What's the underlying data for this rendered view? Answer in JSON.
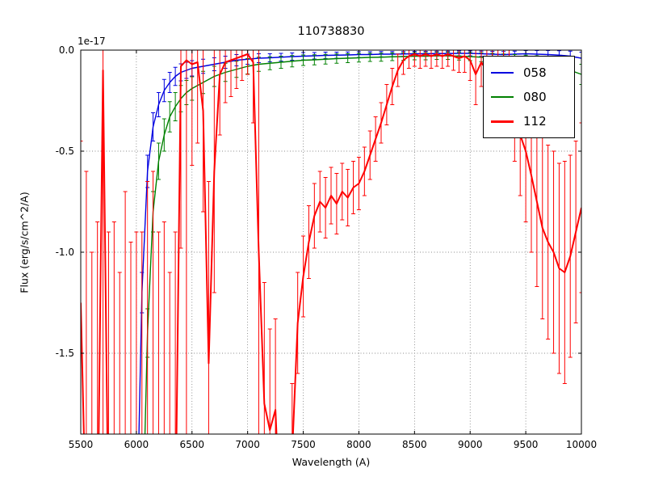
{
  "figure": {
    "background": "#ffffff"
  },
  "chart_data": {
    "type": "line",
    "title": "110738830",
    "xlabel": "Wavelength (A)",
    "ylabel": "Flux (erg/s/cm^2/A)",
    "offset_text": "1e-17",
    "xlim": [
      5500,
      10000
    ],
    "ylim": [
      -1.9,
      0.0
    ],
    "xticks": [
      5500,
      6000,
      6500,
      7000,
      7500,
      8000,
      8500,
      9000,
      9500,
      10000
    ],
    "xtick_labels": [
      "5500",
      "6000",
      "6500",
      "7000",
      "7500",
      "8000",
      "8500",
      "9000",
      "9500",
      "10000"
    ],
    "yticks": [
      0.0,
      -0.5,
      -1.0,
      -1.5
    ],
    "ytick_labels": [
      "0.0",
      "-0.5",
      "-1.0",
      "-1.5"
    ],
    "grid": true,
    "grid_style": "dotted",
    "legend": {
      "position": "upper right"
    },
    "series": [
      {
        "name": "058",
        "color": "#0000e0",
        "lw": 1.4,
        "x": [
          6000,
          6050,
          6100,
          6150,
          6200,
          6250,
          6300,
          6350,
          6400,
          6450,
          6500,
          6600,
          6700,
          6800,
          6900,
          7000,
          7100,
          7200,
          7300,
          7400,
          7500,
          7600,
          7700,
          7800,
          7900,
          8000,
          8100,
          8200,
          8300,
          8400,
          8500,
          8600,
          8700,
          8800,
          8900,
          9000,
          9100,
          9200,
          9300,
          9400,
          9500,
          9600,
          9700,
          9800,
          9900,
          10000
        ],
        "y": [
          -2.5,
          -1.2,
          -0.6,
          -0.38,
          -0.27,
          -0.2,
          -0.16,
          -0.13,
          -0.11,
          -0.1,
          -0.09,
          -0.08,
          -0.07,
          -0.06,
          -0.05,
          -0.045,
          -0.04,
          -0.038,
          -0.035,
          -0.032,
          -0.03,
          -0.028,
          -0.026,
          -0.025,
          -0.024,
          -0.022,
          -0.022,
          -0.02,
          -0.02,
          -0.019,
          -0.018,
          -0.018,
          -0.017,
          -0.017,
          -0.016,
          -0.016,
          -0.018,
          -0.02,
          -0.022,
          -0.02,
          -0.018,
          -0.02,
          -0.022,
          -0.025,
          -0.03,
          -0.04
        ],
        "err": [
          0.12,
          0.1,
          0.08,
          0.07,
          0.06,
          0.055,
          0.05,
          0.045,
          0.042,
          0.04,
          0.038,
          0.035,
          0.032,
          0.03,
          0.028,
          0.025,
          0.022,
          0.02,
          0.019,
          0.018,
          0.018,
          0.016,
          0.016,
          0.015,
          0.015,
          0.014,
          0.014,
          0.013,
          0.013,
          0.012,
          0.012,
          0.012,
          0.012,
          0.012,
          0.012,
          0.012,
          0.013,
          0.014,
          0.015,
          0.015,
          0.016,
          0.018,
          0.02,
          0.022,
          0.025,
          0.03
        ]
      },
      {
        "name": "080",
        "color": "#008000",
        "lw": 1.4,
        "x": [
          6050,
          6100,
          6150,
          6200,
          6250,
          6300,
          6350,
          6400,
          6450,
          6500,
          6600,
          6700,
          6800,
          6900,
          7000,
          7100,
          7200,
          7300,
          7400,
          7500,
          7600,
          7700,
          7800,
          7900,
          8000,
          8100,
          8200,
          8300,
          8400,
          8500,
          8600,
          8700,
          8800,
          8900,
          9000,
          9100,
          9200,
          9300,
          9400,
          9500,
          9600,
          9700,
          9800,
          9900,
          10000
        ],
        "y": [
          -2.5,
          -1.4,
          -0.8,
          -0.55,
          -0.42,
          -0.33,
          -0.28,
          -0.24,
          -0.21,
          -0.19,
          -0.16,
          -0.13,
          -0.11,
          -0.095,
          -0.08,
          -0.07,
          -0.065,
          -0.06,
          -0.055,
          -0.05,
          -0.048,
          -0.045,
          -0.042,
          -0.04,
          -0.038,
          -0.036,
          -0.035,
          -0.033,
          -0.032,
          -0.03,
          -0.03,
          -0.028,
          -0.028,
          -0.03,
          -0.032,
          -0.035,
          -0.04,
          -0.045,
          -0.05,
          -0.055,
          -0.06,
          -0.07,
          -0.08,
          -0.1,
          -0.12
        ],
        "err": [
          0.15,
          0.12,
          0.1,
          0.09,
          0.08,
          0.075,
          0.07,
          0.065,
          0.06,
          0.058,
          0.055,
          0.05,
          0.045,
          0.04,
          0.038,
          0.035,
          0.032,
          0.03,
          0.028,
          0.026,
          0.025,
          0.024,
          0.023,
          0.022,
          0.021,
          0.02,
          0.02,
          0.019,
          0.019,
          0.018,
          0.018,
          0.018,
          0.018,
          0.019,
          0.02,
          0.022,
          0.024,
          0.026,
          0.028,
          0.03,
          0.032,
          0.035,
          0.04,
          0.045,
          0.05
        ]
      },
      {
        "name": "112",
        "color": "#ff0000",
        "lw": 2,
        "x": [
          5500,
          5550,
          5600,
          5650,
          5700,
          5750,
          5800,
          5850,
          5900,
          5950,
          6000,
          6050,
          6100,
          6150,
          6200,
          6250,
          6300,
          6350,
          6400,
          6450,
          6500,
          6550,
          6600,
          6650,
          6700,
          6750,
          6800,
          6850,
          6900,
          6950,
          7000,
          7050,
          7100,
          7150,
          7200,
          7250,
          7300,
          7350,
          7400,
          7450,
          7500,
          7550,
          7600,
          7650,
          7700,
          7750,
          7800,
          7850,
          7900,
          7950,
          8000,
          8050,
          8100,
          8150,
          8200,
          8250,
          8300,
          8350,
          8400,
          8450,
          8500,
          8550,
          8600,
          8650,
          8700,
          8750,
          8800,
          8850,
          8900,
          8950,
          9000,
          9050,
          9100,
          9150,
          9200,
          9250,
          9300,
          9350,
          9400,
          9450,
          9500,
          9550,
          9600,
          9650,
          9700,
          9750,
          9800,
          9850,
          9900,
          9950,
          10000
        ],
        "y": [
          -1.25,
          -2.4,
          -2.5,
          -2.45,
          -0.1,
          -2.4,
          -2.45,
          -2.5,
          -2.4,
          -2.45,
          -2.5,
          -2.4,
          -2.45,
          -2.5,
          -2.4,
          -2.45,
          -2.5,
          -2.4,
          -0.08,
          -0.05,
          -0.07,
          -0.06,
          -0.3,
          -1.55,
          -0.6,
          -0.12,
          -0.06,
          -0.05,
          -0.04,
          -0.03,
          -0.02,
          -0.06,
          -1.0,
          -1.75,
          -1.88,
          -1.78,
          -2.4,
          -2.5,
          -2.0,
          -1.35,
          -1.12,
          -0.95,
          -0.82,
          -0.75,
          -0.78,
          -0.72,
          -0.76,
          -0.7,
          -0.73,
          -0.68,
          -0.66,
          -0.6,
          -0.52,
          -0.44,
          -0.36,
          -0.27,
          -0.18,
          -0.1,
          -0.05,
          -0.03,
          -0.02,
          -0.03,
          -0.02,
          -0.03,
          -0.02,
          -0.03,
          -0.02,
          -0.03,
          -0.04,
          -0.03,
          -0.05,
          -0.12,
          -0.06,
          -0.1,
          -0.05,
          -0.08,
          -0.12,
          -0.2,
          -0.3,
          -0.42,
          -0.5,
          -0.62,
          -0.75,
          -0.88,
          -0.95,
          -1.0,
          -1.08,
          -1.1,
          -1.02,
          -0.9,
          -0.78
        ],
        "err": [
          0.8,
          1.8,
          1.5,
          1.6,
          2.0,
          1.5,
          1.6,
          1.4,
          1.7,
          1.5,
          1.6,
          1.5,
          1.8,
          1.9,
          1.5,
          1.6,
          1.4,
          1.5,
          0.9,
          1.9,
          0.5,
          0.4,
          0.5,
          0.9,
          0.6,
          0.3,
          0.2,
          0.18,
          0.15,
          0.12,
          0.1,
          0.3,
          1.7,
          0.6,
          0.5,
          0.45,
          0.5,
          0.5,
          0.35,
          0.25,
          0.2,
          0.18,
          0.16,
          0.15,
          0.15,
          0.14,
          0.15,
          0.14,
          0.14,
          0.13,
          0.13,
          0.12,
          0.12,
          0.11,
          0.1,
          0.1,
          0.09,
          0.08,
          0.07,
          0.06,
          0.06,
          0.06,
          0.06,
          0.06,
          0.06,
          0.06,
          0.06,
          0.07,
          0.07,
          0.08,
          0.1,
          0.15,
          0.12,
          0.14,
          0.12,
          0.14,
          0.16,
          0.2,
          0.25,
          0.3,
          0.35,
          0.38,
          0.42,
          0.45,
          0.48,
          0.5,
          0.52,
          0.55,
          0.5,
          0.45,
          0.42
        ]
      }
    ]
  }
}
